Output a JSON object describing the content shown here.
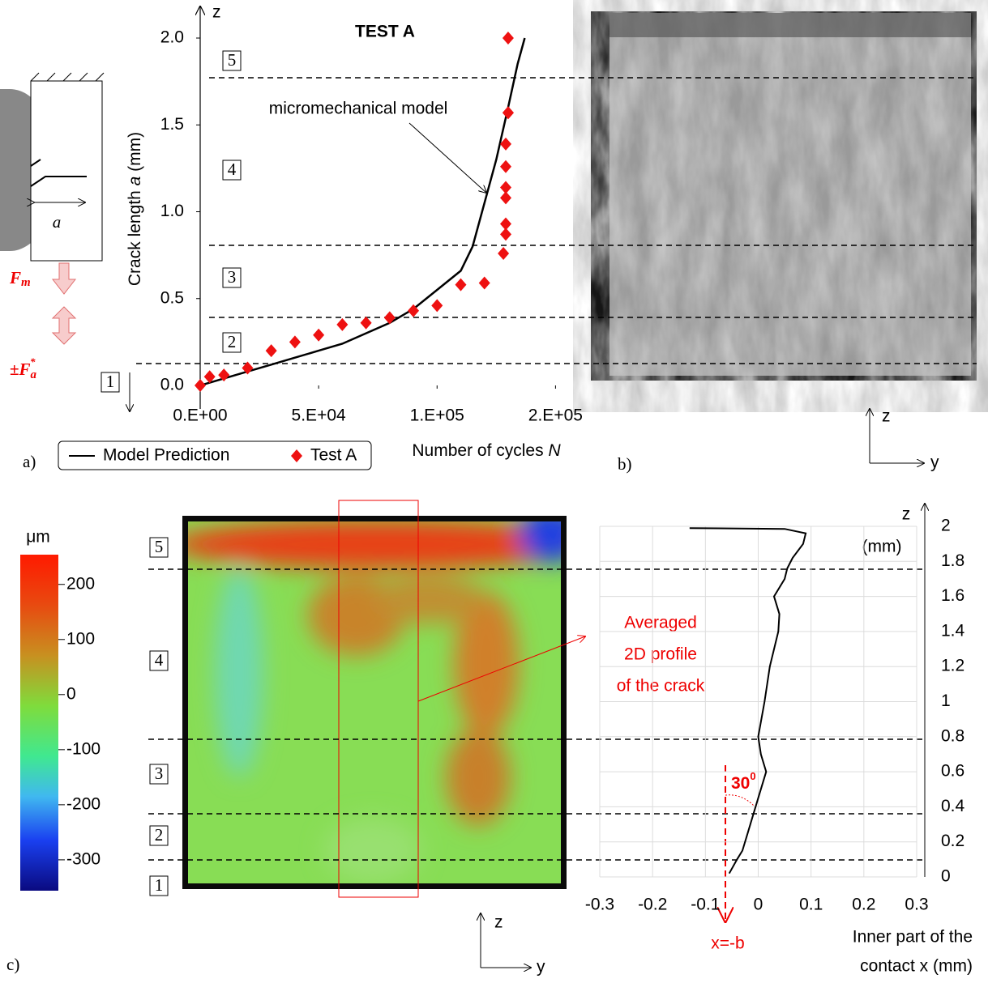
{
  "chart_data": [
    {
      "type": "scatter",
      "title": "TEST A",
      "xlabel": [
        "Number of cycles ",
        "N"
      ],
      "ylabel": [
        "Crack length ",
        "a",
        " (mm)"
      ],
      "ylabel_axis": "z",
      "xlim": [
        0,
        155000
      ],
      "ylim": [
        0,
        2
      ],
      "xticks": [
        {
          "value": 0,
          "label": "0.E+00"
        },
        {
          "value": 50000,
          "label": "5.E+04"
        },
        {
          "value": 100000,
          "label": "1.E+05"
        },
        {
          "value": 150000,
          "label": "2.E+05"
        }
      ],
      "yticks": [
        {
          "value": 0,
          "label": "0.0"
        },
        {
          "value": 0.5,
          "label": "0.5"
        },
        {
          "value": 1,
          "label": "1.0"
        },
        {
          "value": 1.5,
          "label": "1.5"
        },
        {
          "value": 2,
          "label": "2.0"
        }
      ],
      "annotation": "micromechanical model",
      "legend": "bottom",
      "series": [
        {
          "name": "Model Prediction",
          "color": "#000000",
          "mode": "line",
          "x": [
            0,
            10000,
            20000,
            30000,
            40000,
            50000,
            60000,
            70000,
            80000,
            90000,
            100000,
            110000,
            115000,
            120000,
            125000,
            130000,
            134000,
            137000
          ],
          "values": [
            0,
            0.04,
            0.08,
            0.12,
            0.16,
            0.2,
            0.24,
            0.3,
            0.36,
            0.44,
            0.55,
            0.66,
            0.8,
            1.05,
            1.3,
            1.6,
            1.85,
            2.0
          ]
        },
        {
          "name": "Test A",
          "color": "#ee1111",
          "mode": "markers",
          "x": [
            0,
            4000,
            10000,
            20000,
            30000,
            40000,
            50000,
            60000,
            70000,
            80000,
            90000,
            100000,
            110000,
            120000,
            128000,
            129000,
            129000,
            129000,
            129000,
            129000,
            129000,
            130000,
            130000,
            130000
          ],
          "values": [
            0,
            0.05,
            0.06,
            0.1,
            0.2,
            0.25,
            0.29,
            0.35,
            0.36,
            0.39,
            0.43,
            0.46,
            0.58,
            0.59,
            0.76,
            0.87,
            0.93,
            1.08,
            1.14,
            1.26,
            1.39,
            1.57,
            1.57,
            2.0
          ]
        }
      ]
    },
    {
      "type": "colorbar",
      "title": "μm",
      "ylim": [
        -356,
        254
      ],
      "yticks": [
        200,
        100,
        0,
        -100,
        -200,
        -300
      ]
    },
    {
      "type": "line",
      "xlabel": [
        "Inner part of the",
        "contact x (mm)"
      ],
      "ylabel": "z",
      "yunit": "(mm)",
      "xlim": [
        -0.3,
        0.3
      ],
      "ylim": [
        0,
        2
      ],
      "yaxis_position": "right",
      "grid": true,
      "xticks": [
        -0.3,
        -0.2,
        -0.1,
        0,
        0.1,
        0.2,
        0.3
      ],
      "yticks": [
        0,
        0.2,
        0.4,
        0.6,
        0.8,
        1,
        1.2,
        1.4,
        1.6,
        1.8,
        2
      ],
      "annotation": [
        "Averaged",
        "2D profile",
        "of the crack"
      ],
      "angle_label": "30",
      "angle_unit": "0",
      "marker_label": "x=-b",
      "series": [
        {
          "color": "#000000",
          "x": [
            -0.055,
            -0.04,
            -0.03,
            -0.02,
            -0.01,
            0,
            0.015,
            0.005,
            0,
            0.012,
            0.022,
            0.038,
            0.04,
            0.03,
            0.05,
            0.055,
            0.065,
            0.085,
            0.09,
            0.05,
            -0.13
          ],
          "values": [
            0.02,
            0.1,
            0.15,
            0.25,
            0.35,
            0.45,
            0.6,
            0.7,
            0.8,
            1.0,
            1.2,
            1.4,
            1.5,
            1.6,
            1.7,
            1.76,
            1.82,
            1.9,
            1.96,
            1.985,
            1.99
          ]
        }
      ]
    }
  ],
  "panel_labels": [
    "a)",
    "b)",
    "c)"
  ],
  "zone_labels": [
    "1",
    "2",
    "3",
    "4",
    "5"
  ],
  "axis_names": {
    "z": "z",
    "y": "y"
  },
  "schematic": {
    "length": "a",
    "force": "F",
    "mean_sub": "m",
    "alt_prefix": "±F",
    "alt_sub": "a",
    "alt_sup": "*"
  }
}
